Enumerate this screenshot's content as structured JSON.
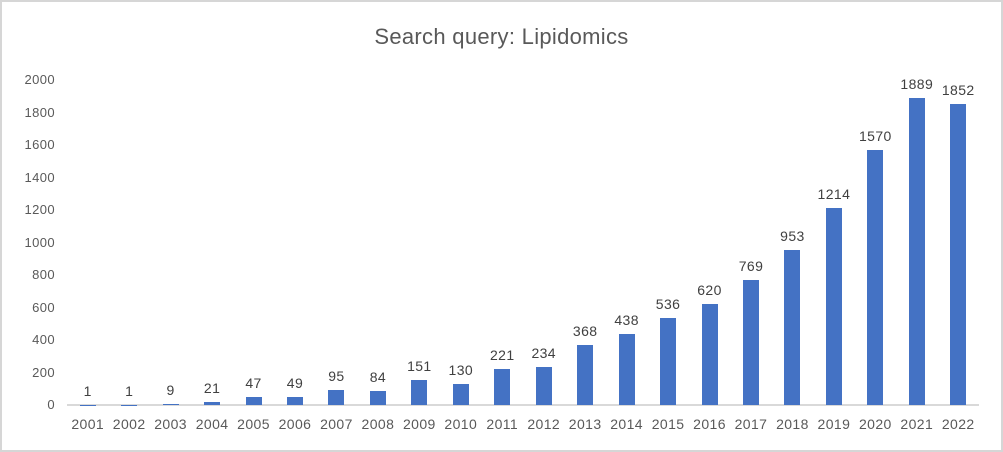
{
  "chart_data": {
    "type": "bar",
    "title": "Search query: Lipidomics",
    "categories": [
      "2001",
      "2002",
      "2003",
      "2004",
      "2005",
      "2006",
      "2007",
      "2008",
      "2009",
      "2010",
      "2011",
      "2012",
      "2013",
      "2014",
      "2015",
      "2016",
      "2017",
      "2018",
      "2019",
      "2020",
      "2021",
      "2022"
    ],
    "values": [
      1,
      1,
      9,
      21,
      47,
      49,
      95,
      84,
      151,
      130,
      221,
      234,
      368,
      438,
      536,
      620,
      769,
      953,
      1214,
      1570,
      1889,
      1852
    ],
    "xlabel": "",
    "ylabel": "",
    "ylim": [
      0,
      2000
    ],
    "y_ticks": [
      0,
      200,
      400,
      600,
      800,
      1000,
      1200,
      1400,
      1600,
      1800,
      2000
    ],
    "grid": false,
    "legend": "none",
    "data_labels_shown": true,
    "colors": {
      "bar": "#4472C4",
      "title_text": "#595959",
      "axis_text": "#595959",
      "data_label_text": "#404040",
      "axis_line": "#d9d9d9",
      "frame_border": "#d6d6d6",
      "background": "#ffffff"
    }
  }
}
